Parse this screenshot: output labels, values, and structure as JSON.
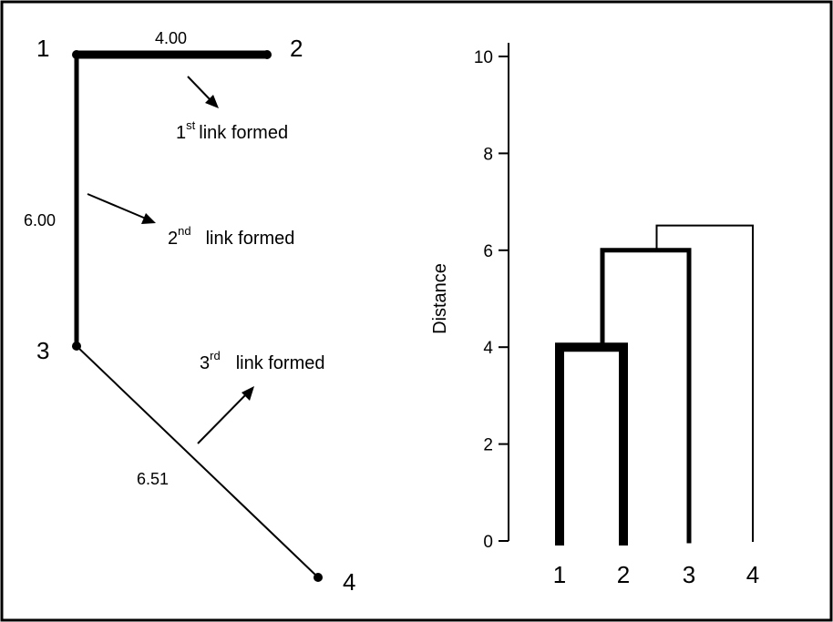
{
  "graph": {
    "nodes": [
      {
        "id": "1",
        "label": "1"
      },
      {
        "id": "2",
        "label": "2"
      },
      {
        "id": "3",
        "label": "3"
      },
      {
        "id": "4",
        "label": "4"
      }
    ],
    "edges": [
      {
        "from": "1",
        "to": "2",
        "label": "4.00",
        "weight": "heavy"
      },
      {
        "from": "1",
        "to": "3",
        "label": "6.00",
        "weight": "medium"
      },
      {
        "from": "3",
        "to": "4",
        "label": "6.51",
        "weight": "light"
      }
    ],
    "annotations": [
      {
        "ordinal": "1",
        "suffix": "st",
        "text": "link formed"
      },
      {
        "ordinal": "2",
        "suffix": "nd",
        "text": "link formed"
      },
      {
        "ordinal": "3",
        "suffix": "rd",
        "text": "link formed"
      }
    ]
  },
  "dendrogram": {
    "ylabel": "Distance",
    "ylim": [
      0,
      10
    ],
    "yticks": [
      "0",
      "2",
      "4",
      "6",
      "8",
      "10"
    ],
    "leaves": [
      "1",
      "2",
      "3",
      "4"
    ],
    "merges": [
      {
        "left": "1",
        "right": "2",
        "height": 4.0
      },
      {
        "left": "(1,2)",
        "right": "3",
        "height": 6.0
      },
      {
        "left": "((1,2),3)",
        "right": "4",
        "height": 6.51
      }
    ]
  }
}
